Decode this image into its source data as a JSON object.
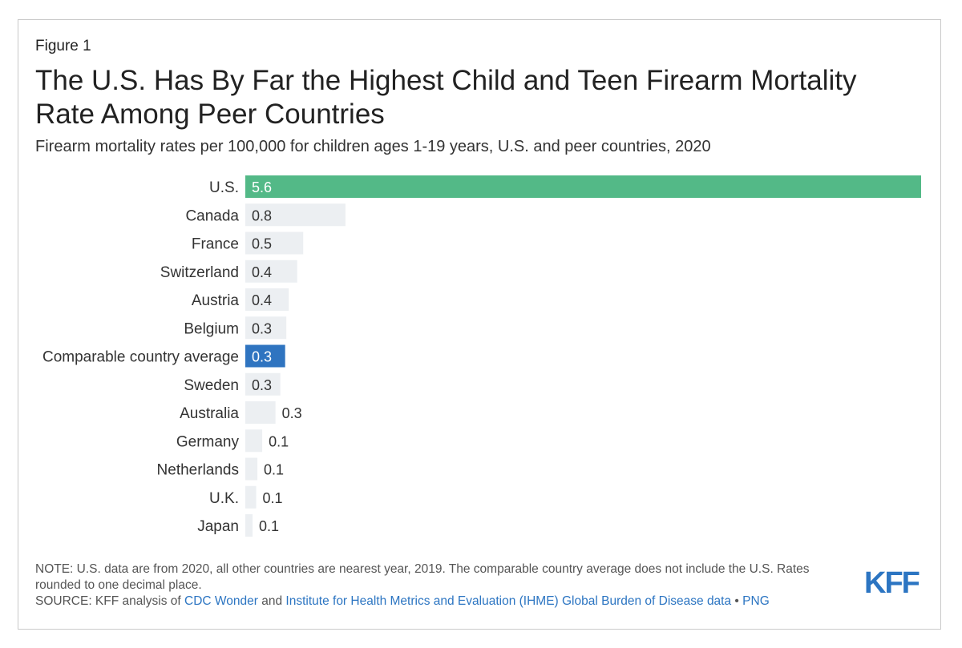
{
  "figure_label": "Figure 1",
  "title": "The U.S. Has By Far the Highest Child and Teen Firearm Mortality Rate Among Peer Countries",
  "subtitle": "Firearm mortality rates per 100,000 for children ages 1-19 years, U.S. and peer countries, 2020",
  "chart_data": {
    "type": "bar",
    "orientation": "horizontal",
    "categories": [
      "U.S.",
      "Canada",
      "France",
      "Switzerland",
      "Austria",
      "Belgium",
      "Comparable country average",
      "Sweden",
      "Australia",
      "Germany",
      "Netherlands",
      "U.K.",
      "Japan"
    ],
    "values": [
      5.6,
      0.83,
      0.48,
      0.43,
      0.36,
      0.34,
      0.33,
      0.29,
      0.25,
      0.14,
      0.1,
      0.09,
      0.06
    ],
    "labels": [
      "5.6",
      "0.8",
      "0.5",
      "0.4",
      "0.4",
      "0.3",
      "0.3",
      "0.3",
      "0.3",
      "0.1",
      "0.1",
      "0.1",
      "0.1"
    ],
    "xlim": [
      0,
      5.6
    ],
    "grid": false,
    "colors": {
      "highlight_us": "#53b987",
      "highlight_average": "#2f74c0",
      "default": "#eceff2",
      "label_on_color": "#ffffff",
      "label_default": "#333333"
    },
    "highlight": {
      "U.S.": "highlight_us",
      "Comparable country average": "highlight_average"
    }
  },
  "note": "NOTE: U.S. data are from 2020, all other countries are nearest year, 2019. The comparable country average does not include the U.S. Rates rounded to one decimal place.",
  "source": {
    "prefix": "SOURCE: KFF analysis of ",
    "link1": "CDC Wonder",
    "middle": " and ",
    "link2": "Institute for Health Metrics and Evaluation (IHME) Global Burden of Disease data",
    "separator": " • ",
    "link3": "PNG"
  },
  "logo_text": "KFF",
  "logo_color": "#2c75c2"
}
